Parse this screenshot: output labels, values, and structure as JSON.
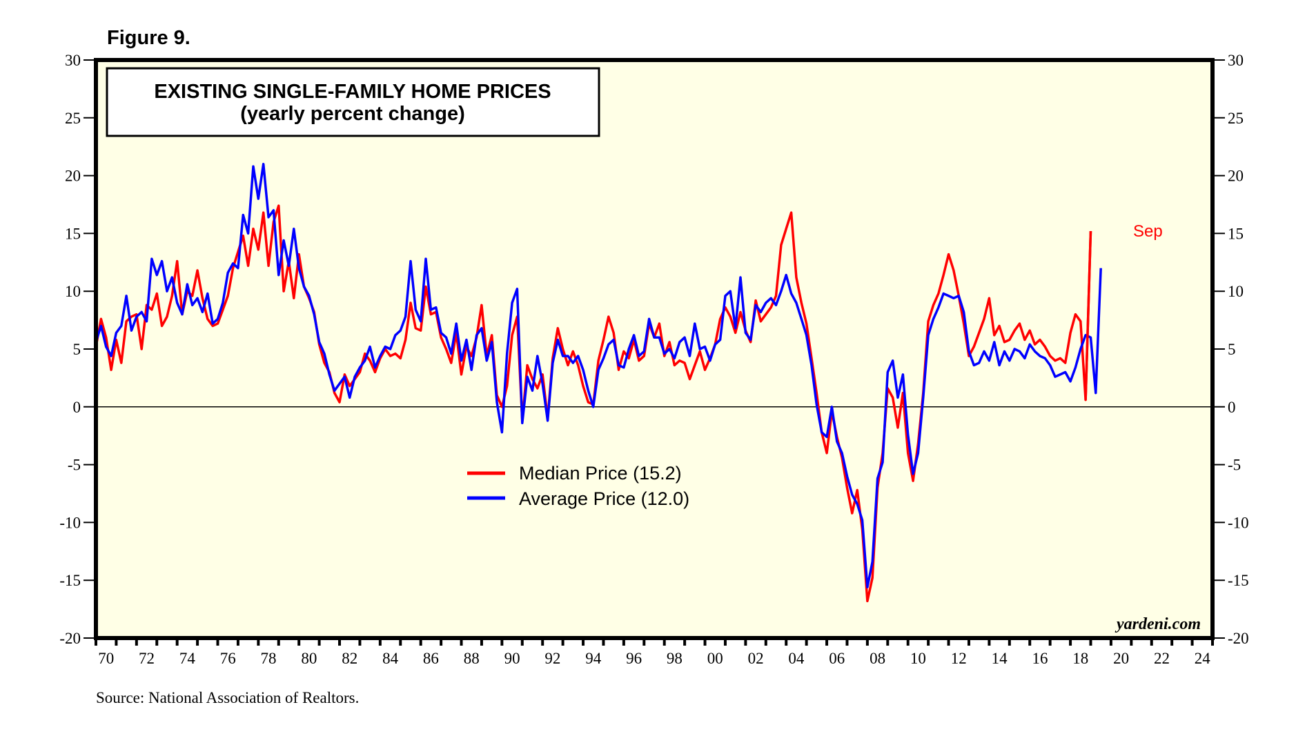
{
  "figure_label": "Figure 9.",
  "brand": "yardeni.com",
  "source": "Source: National Association of Realtors.",
  "colors": {
    "plot_background": "#ffffe6",
    "median": "#ff0000",
    "average": "#0000ff",
    "frame": "#000000"
  },
  "chart_data": {
    "type": "line",
    "title": "EXISTING SINGLE-FAMILY HOME PRICES",
    "subtitle": "(yearly percent change)",
    "xlabel": "",
    "ylabel": "",
    "xlim": [
      1970,
      2025
    ],
    "ylim": [
      -20,
      30
    ],
    "grid": false,
    "zero_line": true,
    "y_ticks": [
      30,
      25,
      20,
      15,
      10,
      5,
      0,
      -5,
      -10,
      -15,
      -20
    ],
    "y_tick_labels": [
      "30",
      "25",
      "20",
      "15",
      "10",
      "5",
      "0",
      "-5",
      "-10",
      "-15",
      "-20"
    ],
    "x_tick_labels": [
      "70",
      "72",
      "74",
      "76",
      "78",
      "80",
      "82",
      "84",
      "86",
      "88",
      "90",
      "92",
      "94",
      "96",
      "98",
      "00",
      "02",
      "04",
      "06",
      "08",
      "10",
      "12",
      "14",
      "16",
      "18",
      "20",
      "22",
      "24"
    ],
    "x_tick_label_years": [
      1970,
      1972,
      1974,
      1976,
      1978,
      1980,
      1982,
      1984,
      1986,
      1988,
      1990,
      1992,
      1994,
      1996,
      1998,
      2000,
      2002,
      2004,
      2006,
      2008,
      2010,
      2012,
      2014,
      2016,
      2018,
      2020,
      2022,
      2024
    ],
    "legend_position": "center",
    "annotation": {
      "text": "Sep",
      "series": "Median Price",
      "x": 2020.75,
      "y": 15.2
    },
    "x": [
      1970.0,
      1970.25,
      1970.5,
      1970.75,
      1971.0,
      1971.25,
      1971.5,
      1971.75,
      1972.0,
      1972.25,
      1972.5,
      1972.75,
      1973.0,
      1973.25,
      1973.5,
      1973.75,
      1974.0,
      1974.25,
      1974.5,
      1974.75,
      1975.0,
      1975.25,
      1975.5,
      1975.75,
      1976.0,
      1976.25,
      1976.5,
      1976.75,
      1977.0,
      1977.25,
      1977.5,
      1977.75,
      1978.0,
      1978.25,
      1978.5,
      1978.75,
      1979.0,
      1979.25,
      1979.5,
      1979.75,
      1980.0,
      1980.25,
      1980.5,
      1980.75,
      1981.0,
      1981.25,
      1981.5,
      1981.75,
      1982.0,
      1982.25,
      1982.5,
      1982.75,
      1983.0,
      1983.25,
      1983.5,
      1983.75,
      1984.0,
      1984.25,
      1984.5,
      1984.75,
      1985.0,
      1985.25,
      1985.5,
      1985.75,
      1986.0,
      1986.25,
      1986.5,
      1986.75,
      1987.0,
      1987.25,
      1987.5,
      1987.75,
      1988.0,
      1988.25,
      1988.5,
      1988.75,
      1989.0,
      1989.25,
      1989.5,
      1989.75,
      1990.0,
      1990.25,
      1990.5,
      1990.75,
      1991.0,
      1991.25,
      1991.5,
      1991.75,
      1992.0,
      1992.25,
      1992.5,
      1992.75,
      1993.0,
      1993.25,
      1993.5,
      1993.75,
      1994.0,
      1994.25,
      1994.5,
      1994.75,
      1995.0,
      1995.25,
      1995.5,
      1995.75,
      1996.0,
      1996.25,
      1996.5,
      1996.75,
      1997.0,
      1997.25,
      1997.5,
      1997.75,
      1998.0,
      1998.25,
      1998.5,
      1998.75,
      1999.0,
      1999.25,
      1999.5,
      1999.75,
      2000.0,
      2000.25,
      2000.5,
      2000.75,
      2001.0,
      2001.25,
      2001.5,
      2001.75,
      2002.0,
      2002.25,
      2002.5,
      2002.75,
      2003.0,
      2003.25,
      2003.5,
      2003.75,
      2004.0,
      2004.25,
      2004.5,
      2004.75,
      2005.0,
      2005.25,
      2005.5,
      2005.75,
      2006.0,
      2006.25,
      2006.5,
      2006.75,
      2007.0,
      2007.25,
      2007.5,
      2007.75,
      2008.0,
      2008.25,
      2008.5,
      2008.75,
      2009.0,
      2009.25,
      2009.5,
      2009.75,
      2010.0,
      2010.25,
      2010.5,
      2010.75,
      2011.0,
      2011.25,
      2011.5,
      2011.75,
      2012.0,
      2012.25,
      2012.5,
      2012.75,
      2013.0,
      2013.25,
      2013.5,
      2013.75,
      2014.0,
      2014.25,
      2014.5,
      2014.75,
      2015.0,
      2015.25,
      2015.5,
      2015.75,
      2016.0,
      2016.25,
      2016.5,
      2016.75,
      2017.0,
      2017.25,
      2017.5,
      2017.75,
      2018.0,
      2018.25,
      2018.5,
      2018.75,
      2019.0,
      2019.25,
      2019.5,
      2019.75,
      2020.0,
      2020.25,
      2020.5,
      2020.75
    ],
    "series": [
      {
        "name": "Median Price",
        "legend_label": "Median Price (15.2)",
        "last_value": 15.2,
        "values": [
          5.2,
          7.6,
          6.0,
          3.2,
          5.8,
          3.8,
          7.4,
          7.8,
          8.0,
          5.0,
          8.8,
          8.4,
          9.8,
          7.0,
          7.8,
          9.6,
          12.6,
          8.0,
          10.0,
          9.6,
          11.8,
          9.4,
          7.6,
          7.0,
          7.2,
          8.4,
          9.6,
          12.0,
          13.4,
          14.8,
          12.2,
          15.4,
          13.6,
          16.8,
          12.2,
          16.0,
          17.4,
          10.0,
          12.6,
          9.4,
          13.2,
          10.4,
          9.4,
          8.2,
          5.4,
          3.8,
          3.0,
          1.2,
          0.4,
          2.8,
          1.8,
          2.4,
          3.0,
          4.6,
          4.0,
          3.0,
          4.2,
          5.0,
          4.4,
          4.6,
          4.2,
          5.8,
          9.0,
          6.8,
          6.6,
          10.4,
          8.0,
          8.2,
          6.0,
          5.0,
          3.8,
          6.4,
          2.8,
          5.2,
          4.4,
          6.0,
          8.8,
          4.4,
          6.2,
          1.0,
          0.0,
          1.8,
          6.2,
          7.8,
          -1.2,
          3.6,
          2.4,
          1.6,
          2.8,
          -1.0,
          4.2,
          6.8,
          5.0,
          3.6,
          4.8,
          3.6,
          1.8,
          0.4,
          0.2,
          4.0,
          5.8,
          7.8,
          6.4,
          3.2,
          4.8,
          4.2,
          5.8,
          4.0,
          4.4,
          7.2,
          6.0,
          7.2,
          4.4,
          5.6,
          3.6,
          4.0,
          3.8,
          2.4,
          3.6,
          4.8,
          3.2,
          4.2,
          5.4,
          7.6,
          8.6,
          7.8,
          6.4,
          8.2,
          6.6,
          5.6,
          9.2,
          7.4,
          8.0,
          8.6,
          9.6,
          14.0,
          15.4,
          16.8,
          11.2,
          9.0,
          7.2,
          4.2,
          1.2,
          -2.2,
          -4.0,
          -0.4,
          -2.6,
          -4.4,
          -7.0,
          -9.2,
          -7.2,
          -10.6,
          -16.8,
          -14.8,
          -7.0,
          -4.0,
          1.6,
          0.8,
          -1.8,
          1.2,
          -4.0,
          -6.4,
          -3.2,
          1.2,
          7.4,
          8.8,
          9.8,
          11.4,
          13.2,
          11.8,
          9.6,
          7.2,
          4.4,
          5.2,
          6.4,
          7.6,
          9.4,
          6.2,
          7.0,
          5.6,
          5.8,
          6.6,
          7.2,
          5.8,
          6.6,
          5.4,
          5.8,
          5.2,
          4.4,
          4.0,
          4.2,
          3.8,
          6.4,
          8.0,
          7.4,
          0.6,
          15.2
        ]
      },
      {
        "name": "Average Price",
        "legend_label": "Average Price (12.0)",
        "last_value": 12.0,
        "values": [
          5.6,
          7.0,
          5.2,
          4.4,
          6.4,
          7.0,
          9.6,
          6.6,
          7.8,
          8.2,
          7.4,
          12.8,
          11.4,
          12.6,
          10.0,
          11.2,
          9.0,
          8.0,
          10.6,
          8.8,
          9.4,
          8.2,
          9.8,
          7.2,
          7.6,
          9.0,
          11.6,
          12.4,
          12.0,
          16.6,
          15.0,
          20.8,
          18.0,
          21.0,
          16.4,
          17.0,
          11.4,
          14.4,
          12.2,
          15.4,
          12.0,
          10.4,
          9.6,
          8.0,
          5.6,
          4.6,
          2.8,
          1.4,
          2.0,
          2.6,
          0.8,
          2.6,
          3.4,
          4.0,
          5.2,
          3.4,
          4.4,
          5.2,
          5.0,
          6.2,
          6.6,
          7.8,
          12.6,
          8.4,
          7.4,
          12.8,
          8.4,
          8.6,
          6.4,
          6.0,
          4.6,
          7.2,
          4.0,
          5.8,
          3.2,
          6.2,
          6.8,
          4.0,
          5.6,
          0.4,
          -2.2,
          4.6,
          9.0,
          10.2,
          -1.4,
          2.6,
          1.4,
          4.4,
          2.0,
          -1.2,
          3.8,
          5.8,
          4.4,
          4.4,
          3.8,
          4.4,
          3.2,
          1.4,
          0.0,
          3.2,
          4.2,
          5.4,
          5.8,
          3.6,
          3.4,
          5.0,
          6.2,
          4.4,
          4.8,
          7.6,
          6.0,
          6.0,
          4.6,
          5.0,
          4.2,
          5.6,
          6.0,
          4.4,
          7.2,
          5.0,
          5.2,
          4.0,
          5.4,
          5.8,
          9.6,
          10.0,
          6.8,
          11.2,
          6.4,
          5.8,
          8.8,
          8.2,
          9.0,
          9.4,
          8.8,
          10.0,
          11.4,
          9.8,
          9.0,
          7.6,
          6.2,
          3.6,
          0.2,
          -2.2,
          -2.6,
          0.0,
          -3.0,
          -4.0,
          -6.0,
          -7.6,
          -8.4,
          -9.8,
          -15.6,
          -13.4,
          -6.2,
          -4.8,
          3.0,
          4.0,
          0.8,
          2.8,
          -2.4,
          -5.8,
          -4.0,
          0.8,
          6.2,
          7.6,
          8.6,
          9.8,
          9.6,
          9.4,
          9.6,
          8.2,
          4.8,
          3.6,
          3.8,
          4.8,
          4.0,
          5.6,
          3.6,
          4.8,
          4.0,
          5.0,
          4.8,
          4.2,
          5.4,
          4.8,
          4.4,
          4.2,
          3.6,
          2.6,
          2.8,
          3.0,
          2.2,
          3.4,
          5.0,
          6.2,
          6.0,
          1.2,
          12.0
        ]
      }
    ]
  }
}
